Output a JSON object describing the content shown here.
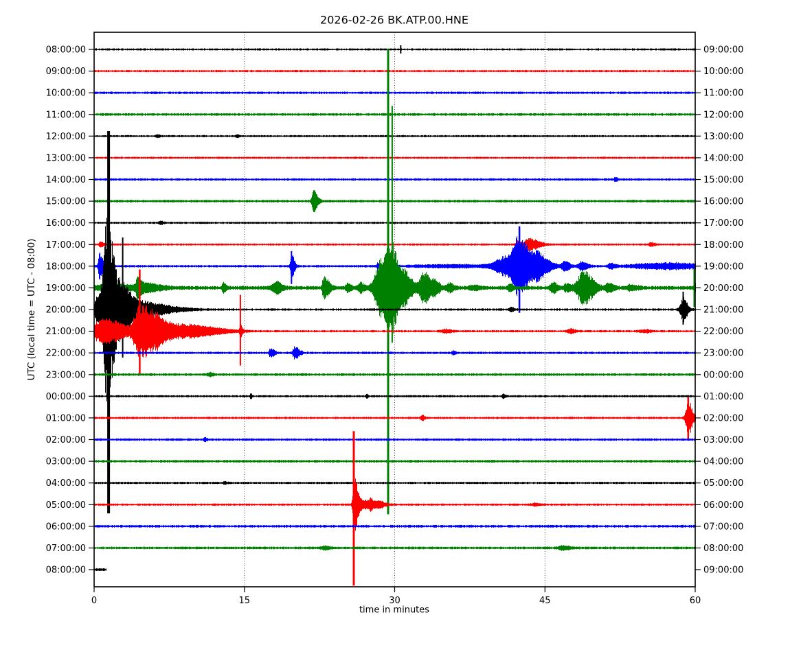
{
  "title": "2026-02-26 BK.ATP.00.HNE",
  "ylabel": "UTC (local time = UTC - 08:00)",
  "xlabel": "time in minutes",
  "chart_data": {
    "type": "line",
    "subtype": "seismogram-helicorder-dayplot",
    "title": "2026-02-26 BK.ATP.00.HNE",
    "date": "2026-02-26",
    "station": "BK.ATP.00.HNE",
    "xlabel": "time in minutes",
    "ylabel_left": "UTC (local time = UTC - 08:00)",
    "x_ticks": [
      0,
      15,
      30,
      45,
      60
    ],
    "x_range": [
      0,
      60
    ],
    "minutes_per_line": 60,
    "grid": "vertical-dotted",
    "colors": {
      "black": "#000000",
      "red": "#ff0000",
      "blue": "#0000ff",
      "green": "#008000"
    },
    "rows": [
      {
        "left_label": "08:00:00",
        "right_label": "09:00:00",
        "color": "black",
        "base": 1.6,
        "events": [
          {
            "t": 30.6,
            "u": 6,
            "d": 6,
            "w": 2
          }
        ]
      },
      {
        "left_label": "09:00:00",
        "right_label": "10:00:00",
        "color": "red",
        "base": 1.6,
        "events": []
      },
      {
        "left_label": "10:00:00",
        "right_label": "11:00:00",
        "color": "blue",
        "base": 1.8,
        "events": []
      },
      {
        "left_label": "11:00:00",
        "right_label": "12:00:00",
        "color": "green",
        "base": 2.0,
        "events": []
      },
      {
        "left_label": "12:00:00",
        "right_label": "13:00:00",
        "color": "black",
        "base": 1.6,
        "events": [
          {
            "t": 6.3,
            "a": 2.5,
            "r": 0.1,
            "f": 0.2
          },
          {
            "t": 14.2,
            "a": 2,
            "r": 0.1,
            "f": 0.2
          }
        ]
      },
      {
        "left_label": "13:00:00",
        "right_label": "14:00:00",
        "color": "red",
        "base": 1.6,
        "events": []
      },
      {
        "left_label": "14:00:00",
        "right_label": "15:00:00",
        "color": "blue",
        "base": 1.8,
        "events": [
          {
            "t": 52,
            "a": 2.5,
            "r": 0.1,
            "f": 0.2
          }
        ]
      },
      {
        "left_label": "15:00:00",
        "right_label": "16:00:00",
        "color": "green",
        "base": 2.0,
        "events": [
          {
            "t": 21.9,
            "a": 15,
            "r": 0.15,
            "f": 0.35
          }
        ]
      },
      {
        "left_label": "16:00:00",
        "right_label": "17:00:00",
        "color": "black",
        "base": 1.6,
        "events": [
          {
            "t": 6.5,
            "a": 2.5,
            "r": 0.1,
            "f": 0.3
          }
        ]
      },
      {
        "left_label": "17:00:00",
        "right_label": "18:00:00",
        "color": "red",
        "base": 1.6,
        "events": [
          {
            "t": 0.6,
            "a": 4,
            "r": 0.1,
            "f": 0.25
          },
          {
            "t": 42.3,
            "a": 6,
            "r": 0.15,
            "f": 0.2
          },
          {
            "t": 43.3,
            "a": 9,
            "r": 0.3,
            "f": 0.9
          },
          {
            "t": 55.6,
            "a": 2.5,
            "r": 0.2,
            "f": 0.3
          }
        ]
      },
      {
        "left_label": "18:00:00",
        "right_label": "19:00:00",
        "color": "blue",
        "base": 1.8,
        "events": [
          {
            "t": 0.55,
            "a": 20,
            "r": 0.12,
            "f": 0.3
          },
          {
            "t": 19.7,
            "a": 16,
            "r": 0.1,
            "f": 0.25
          },
          {
            "t": 19.7,
            "u": 22,
            "d": 26,
            "w": 2
          },
          {
            "t": 28.3,
            "a": 5,
            "r": 0.08,
            "f": 0.15
          },
          {
            "t": 36,
            "a": 2,
            "r": 3,
            "f": 3
          },
          {
            "t": 41,
            "a": 14,
            "r": 0.8,
            "f": 2
          },
          {
            "t": 42.4,
            "a": 38,
            "r": 0.5,
            "f": 0.9
          },
          {
            "t": 42.45,
            "u": 58,
            "d": 68,
            "w": 2.5
          },
          {
            "t": 44.3,
            "a": 16,
            "r": 0.4,
            "f": 0.9
          },
          {
            "t": 47,
            "a": 8,
            "r": 0.25,
            "f": 0.4
          },
          {
            "t": 48.6,
            "a": 7,
            "r": 0.25,
            "f": 0.5
          },
          {
            "t": 51.5,
            "a": 4,
            "r": 0.2,
            "f": 0.4
          },
          {
            "t": 55,
            "a": 3,
            "r": 1.5,
            "f": 1
          },
          {
            "t": 57.5,
            "a": 4.5,
            "r": 1.2,
            "f": 2.5
          }
        ]
      },
      {
        "left_label": "19:00:00",
        "right_label": "20:00:00",
        "color": "green",
        "base": 3.0,
        "events": [
          {
            "t": 2,
            "a": 4,
            "r": 2,
            "f": 2
          },
          {
            "t": 4.35,
            "a": 16,
            "r": 0.15,
            "f": 0.35
          },
          {
            "t": 5.3,
            "a": 5,
            "r": 0.3,
            "f": 1.2
          },
          {
            "t": 12.85,
            "a": 8,
            "r": 0.08,
            "f": 0.2
          },
          {
            "t": 18.1,
            "a": 9,
            "r": 0.3,
            "f": 0.5
          },
          {
            "t": 22.9,
            "a": 16,
            "r": 0.12,
            "f": 0.45
          },
          {
            "t": 25.3,
            "a": 6,
            "r": 0.15,
            "f": 0.3
          },
          {
            "t": 26.6,
            "a": 7,
            "r": 0.2,
            "f": 0.3
          },
          {
            "t": 28.6,
            "a": 42,
            "r": 0.5,
            "f": 0.5
          },
          {
            "t": 29.5,
            "a": 70,
            "r": 0.35,
            "f": 0.8
          },
          {
            "t": 29.35,
            "u": 348,
            "d": 330,
            "w": 3
          },
          {
            "t": 29.75,
            "u": 265,
            "d": 80,
            "w": 2
          },
          {
            "t": 31.1,
            "a": 18,
            "r": 0.3,
            "f": 0.6
          },
          {
            "t": 32.9,
            "a": 25,
            "r": 0.35,
            "f": 0.55
          },
          {
            "t": 34,
            "a": 10,
            "r": 0.2,
            "f": 0.4
          },
          {
            "t": 35.4,
            "a": 6,
            "r": 0.2,
            "f": 0.4
          },
          {
            "t": 38,
            "a": 3,
            "r": 0.5,
            "f": 0.5
          },
          {
            "t": 41.5,
            "a": 4.5,
            "r": 0.2,
            "f": 0.3
          },
          {
            "t": 45.8,
            "a": 7,
            "r": 0.25,
            "f": 0.4
          },
          {
            "t": 47.1,
            "a": 5,
            "r": 0.2,
            "f": 0.4
          },
          {
            "t": 48.8,
            "a": 26,
            "r": 0.45,
            "f": 0.8
          },
          {
            "t": 51.3,
            "a": 6,
            "r": 0.25,
            "f": 0.5
          },
          {
            "t": 53.6,
            "a": 4,
            "r": 0.3,
            "f": 0.5
          },
          {
            "t": 59.9,
            "a": 10,
            "r": 0.05,
            "f": 0.1
          },
          {
            "t": 59.9,
            "u": 28,
            "d": 28,
            "w": 2
          }
        ]
      },
      {
        "left_label": "20:00:00",
        "right_label": "21:00:00",
        "color": "black",
        "base": 1.7,
        "events": [
          {
            "t": 0.4,
            "a": 22,
            "r": 0.35,
            "f": 0.3
          },
          {
            "t": 1.1,
            "a": 90,
            "r": 0.25,
            "f": 0.25
          },
          {
            "t": 1.55,
            "a": 120,
            "r": 0.3,
            "f": 0.5
          },
          {
            "t": 1.45,
            "u": 260,
            "d": 297,
            "w": 4
          },
          {
            "t": 2.8,
            "a": 40,
            "r": 0.4,
            "f": 0.8
          },
          {
            "t": 2.85,
            "u": 105,
            "d": 70,
            "w": 2
          },
          {
            "t": 4.5,
            "a": 12,
            "r": 0.5,
            "f": 1.5
          },
          {
            "t": 7,
            "a": 4,
            "r": 1,
            "f": 2
          },
          {
            "t": 41.6,
            "a": 3,
            "r": 0.15,
            "f": 0.25
          },
          {
            "t": 58.8,
            "a": 18,
            "r": 0.25,
            "f": 0.35
          },
          {
            "t": 58.8,
            "u": 26,
            "d": 22,
            "w": 2
          }
        ]
      },
      {
        "left_label": "21:00:00",
        "right_label": "22:00:00",
        "color": "red",
        "base": 1.7,
        "events": [
          {
            "t": 0.25,
            "a": 13,
            "r": 0.25,
            "f": 0.6
          },
          {
            "t": 1.2,
            "a": 18,
            "r": 0.4,
            "f": 0.8
          },
          {
            "t": 2.4,
            "a": 10,
            "r": 0.3,
            "f": 0.8
          },
          {
            "t": 4.6,
            "a": 40,
            "r": 0.55,
            "f": 1.3
          },
          {
            "t": 4.55,
            "u": 90,
            "d": 62,
            "w": 2.5
          },
          {
            "t": 6.5,
            "a": 12,
            "r": 0.6,
            "f": 3
          },
          {
            "t": 10,
            "a": 4,
            "r": 1,
            "f": 2.5
          },
          {
            "t": 14.6,
            "a": 9,
            "r": 0.08,
            "f": 0.15
          },
          {
            "t": 14.6,
            "u": 53,
            "d": 50,
            "w": 2
          },
          {
            "t": 35,
            "a": 2.5,
            "r": 0.3,
            "f": 0.5
          },
          {
            "t": 47.5,
            "a": 3.5,
            "r": 0.2,
            "f": 0.4
          },
          {
            "t": 55,
            "a": 2,
            "r": 0.5,
            "f": 0.5
          }
        ]
      },
      {
        "left_label": "22:00:00",
        "right_label": "23:00:00",
        "color": "blue",
        "base": 1.8,
        "events": [
          {
            "t": 17.6,
            "a": 7,
            "r": 0.12,
            "f": 0.3
          },
          {
            "t": 20,
            "a": 9,
            "r": 0.15,
            "f": 0.4
          },
          {
            "t": 35.8,
            "a": 3,
            "r": 0.1,
            "f": 0.2
          }
        ]
      },
      {
        "left_label": "23:00:00",
        "right_label": "00:00:00",
        "color": "green",
        "base": 2.0,
        "events": [
          {
            "t": 11.5,
            "a": 2.5,
            "r": 0.2,
            "f": 0.3
          }
        ]
      },
      {
        "left_label": "00:00:00",
        "right_label": "01:00:00",
        "color": "black",
        "base": 1.7,
        "events": [
          {
            "t": 15.6,
            "a": 4,
            "r": 0.05,
            "f": 0.1
          },
          {
            "t": 27.2,
            "a": 3,
            "r": 0.05,
            "f": 0.1
          },
          {
            "t": 40.8,
            "a": 2.5,
            "r": 0.1,
            "f": 0.2
          }
        ]
      },
      {
        "left_label": "01:00:00",
        "right_label": "02:00:00",
        "color": "red",
        "base": 1.7,
        "events": [
          {
            "t": 32.7,
            "a": 4,
            "r": 0.1,
            "f": 0.2
          },
          {
            "t": 59.3,
            "a": 26,
            "r": 0.2,
            "f": 0.35
          },
          {
            "t": 59.3,
            "u": 30,
            "d": 32,
            "w": 2.5
          }
        ]
      },
      {
        "left_label": "02:00:00",
        "right_label": "03:00:00",
        "color": "blue",
        "base": 1.8,
        "events": [
          {
            "t": 11,
            "a": 3,
            "r": 0.1,
            "f": 0.2
          }
        ]
      },
      {
        "left_label": "03:00:00",
        "right_label": "04:00:00",
        "color": "green",
        "base": 2.0,
        "events": []
      },
      {
        "left_label": "04:00:00",
        "right_label": "05:00:00",
        "color": "black",
        "base": 1.7,
        "events": [
          {
            "t": 13,
            "a": 2,
            "r": 0.1,
            "f": 0.2
          }
        ]
      },
      {
        "left_label": "05:00:00",
        "right_label": "06:00:00",
        "color": "red",
        "base": 1.7,
        "events": [
          {
            "t": 25.92,
            "u": 107,
            "d": 118,
            "w": 3
          },
          {
            "t": 25.95,
            "a": 42,
            "r": 0.12,
            "f": 0.3
          },
          {
            "t": 26.8,
            "a": 6,
            "r": 0.4,
            "f": 1.2
          },
          {
            "t": 27.6,
            "a": 5,
            "r": 0.15,
            "f": 0.3
          },
          {
            "t": 28.4,
            "a": 4,
            "r": 0.15,
            "f": 0.4
          },
          {
            "t": 44,
            "a": 2,
            "r": 0.3,
            "f": 0.3
          }
        ]
      },
      {
        "left_label": "06:00:00",
        "right_label": "07:00:00",
        "color": "blue",
        "base": 2.0,
        "events": []
      },
      {
        "left_label": "07:00:00",
        "right_label": "08:00:00",
        "color": "green",
        "base": 2.0,
        "events": [
          {
            "t": 23,
            "a": 2.5,
            "r": 0.3,
            "f": 0.4
          },
          {
            "t": 46.8,
            "a": 3,
            "r": 0.4,
            "f": 0.6
          }
        ]
      },
      {
        "left_label": "08:00:00",
        "right_label": "09:00:00",
        "color": "black",
        "base": 2.2,
        "end": 1.2,
        "events": []
      }
    ]
  }
}
